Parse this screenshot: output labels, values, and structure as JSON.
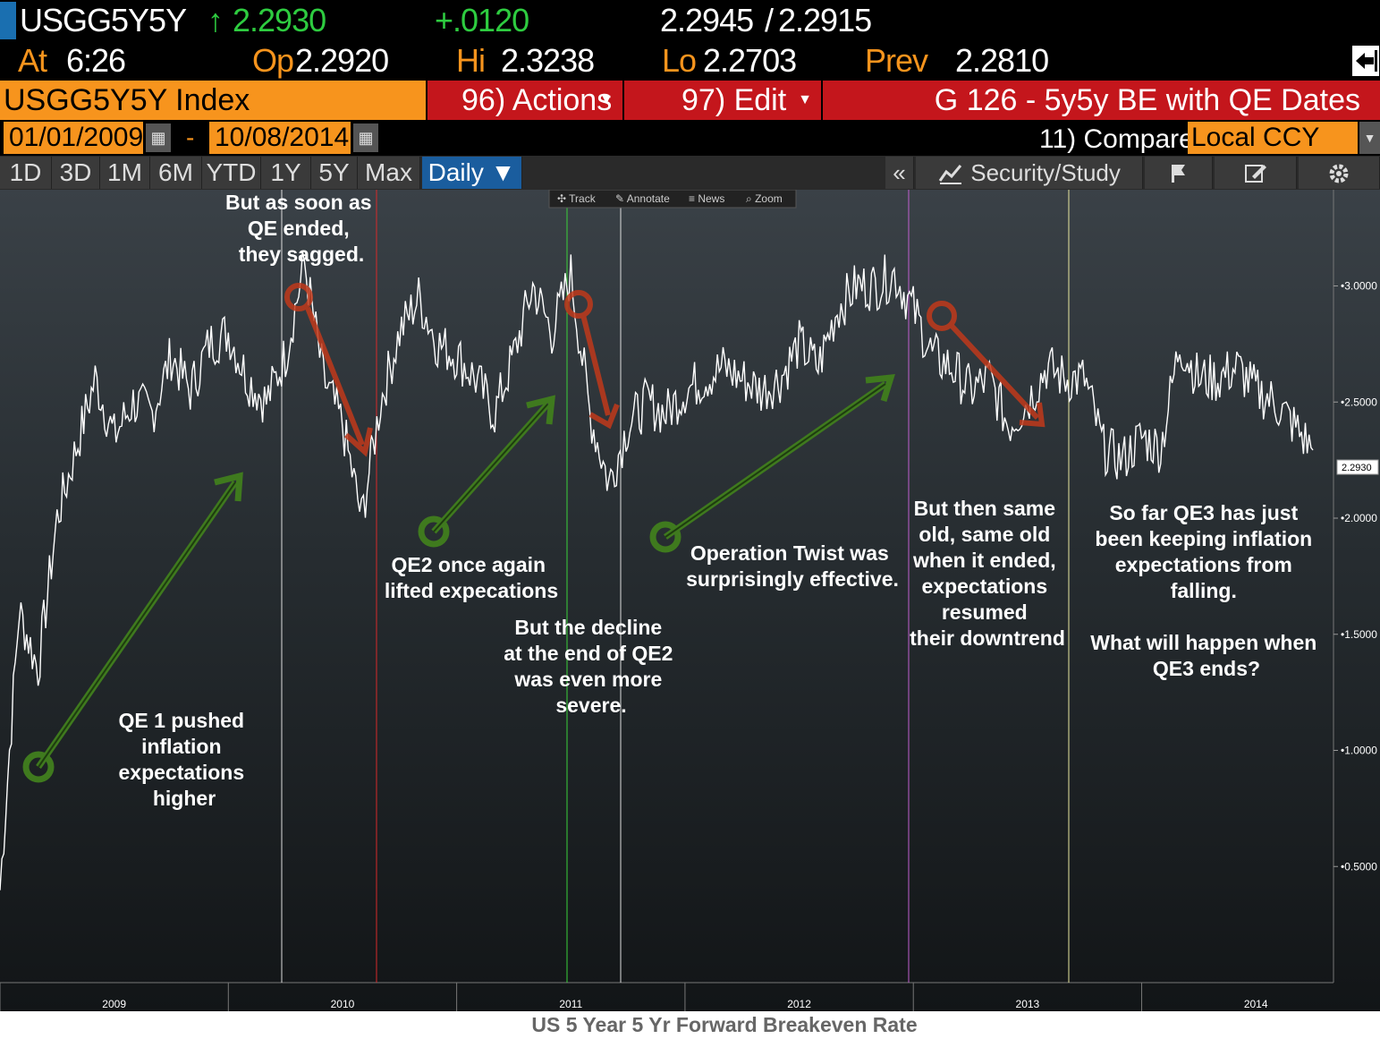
{
  "header": {
    "ticker": "USGG5Y5Y",
    "arrow": "↑",
    "last": "2.2930",
    "change": "+.0120",
    "bid": "2.2945",
    "slash": "/",
    "ask": "2.2915",
    "at_label": "At",
    "time": "6:26",
    "op_label": "Op",
    "op": "2.2920",
    "hi_label": "Hi",
    "hi": "2.3238",
    "lo_label": "Lo",
    "lo": "2.2703",
    "prev_label": "Prev",
    "prev": "2.2810",
    "exit_icon": "exit-icon"
  },
  "toolbar": {
    "security": "USGG5Y5Y Index",
    "actions": "96) Actions",
    "edit": "97) Edit",
    "chart_title": "G 126 - 5y5y BE with QE Dates",
    "start_date": "01/01/2009",
    "dash": "-",
    "end_date": "10/08/2014",
    "compare": "11) Compare",
    "currency": "Local CCY",
    "calendar_icon": "calendar-icon",
    "dropdown_icon": "chevron-down-icon"
  },
  "tabs": [
    "1D",
    "3D",
    "1M",
    "6M",
    "YTD",
    "1Y",
    "5Y",
    "Max",
    "Daily ▼"
  ],
  "tools": {
    "collapse": "«",
    "security_study": "Security/Study",
    "chart_icon": "chart-icon",
    "flag_icon": "flag-icon",
    "edit_icon": "edit-icon",
    "gear_icon": "gear-icon"
  },
  "mini_toolbar": [
    "Track",
    "Annotate",
    "News",
    "Zoom"
  ],
  "colors": {
    "orange": "#f7941d",
    "red": "#c4161c",
    "green_arrow": "#3f7a1e",
    "red_arrow": "#c0391b"
  },
  "chart_data": {
    "type": "line",
    "series": [
      {
        "x": [
          "2009-01",
          "2009-02",
          "2009-03",
          "2009-04",
          "2009-05",
          "2009-06",
          "2009-07",
          "2009-08",
          "2009-09",
          "2009-10",
          "2009-11",
          "2009-12",
          "2010-01",
          "2010-02",
          "2010-03",
          "2010-04",
          "2010-05",
          "2010-06",
          "2010-07",
          "2010-08",
          "2010-09",
          "2010-10",
          "2010-11",
          "2010-12",
          "2011-01",
          "2011-02",
          "2011-03",
          "2011-04",
          "2011-05",
          "2011-06",
          "2011-07",
          "2011-08",
          "2011-09",
          "2011-10",
          "2011-11",
          "2011-12",
          "2012-01",
          "2012-02",
          "2012-03",
          "2012-04",
          "2012-05",
          "2012-06",
          "2012-07",
          "2012-08",
          "2012-09",
          "2012-10",
          "2012-11",
          "2012-12",
          "2013-01",
          "2013-02",
          "2013-03",
          "2013-04",
          "2013-05",
          "2013-06",
          "2013-07",
          "2013-08",
          "2013-09",
          "2013-10",
          "2013-11",
          "2013-12",
          "2014-01",
          "2014-02",
          "2014-03",
          "2014-04",
          "2014-05",
          "2014-06",
          "2014-07",
          "2014-08",
          "2014-09",
          "2014-10"
        ],
        "values": [
          0.4,
          1.6,
          1.35,
          2.0,
          2.3,
          2.6,
          2.35,
          2.5,
          2.45,
          2.7,
          2.55,
          2.75,
          2.8,
          2.6,
          2.5,
          2.7,
          3.1,
          2.6,
          2.4,
          2.0,
          2.5,
          2.8,
          2.95,
          2.75,
          2.7,
          2.6,
          2.45,
          2.7,
          3.0,
          2.8,
          3.05,
          2.45,
          2.15,
          2.4,
          2.5,
          2.45,
          2.55,
          2.6,
          2.65,
          2.6,
          2.55,
          2.6,
          2.75,
          2.65,
          2.9,
          3.0,
          3.0,
          3.05,
          2.9,
          2.7,
          2.65,
          2.55,
          2.6,
          2.4,
          2.5,
          2.65,
          2.6,
          2.6,
          2.3,
          2.25,
          2.35,
          2.3,
          2.75,
          2.6,
          2.6,
          2.65,
          2.55,
          2.5,
          2.4,
          2.293
        ]
      }
    ],
    "yticks": [
      "0.5000",
      "1.0000",
      "1.5000",
      "2.0000",
      "2.5000",
      "3.0000"
    ],
    "ylim": [
      0.0,
      3.3
    ],
    "last_value_label": "2.2930",
    "xticks": [
      "2009",
      "2010",
      "2011",
      "2012",
      "2013",
      "2014"
    ],
    "caption": "US 5 Year 5 Yr Forward Breakeven Rate"
  },
  "annotations": {
    "qe1": [
      "QE 1 pushed",
      "inflation",
      "expectations",
      "higher"
    ],
    "qe1_end": [
      "But as soon as",
      "QE ended,",
      "they sagged."
    ],
    "qe2": [
      "QE2 once again",
      "lifted expecations"
    ],
    "qe2_end": [
      "But the decline",
      "at the end of QE2",
      "was even more",
      "severe."
    ],
    "twist": [
      "Operation Twist was",
      "surprisingly effective."
    ],
    "twist_end": [
      "But then same",
      "old, same old",
      "when it ended,",
      "expectations",
      "resumed",
      "their downtrend"
    ],
    "qe3": [
      "So far QE3 has just",
      "been keeping inflation",
      "expectations from",
      "falling.",
      "",
      "What will happen when",
      "QE3 ends?"
    ]
  }
}
